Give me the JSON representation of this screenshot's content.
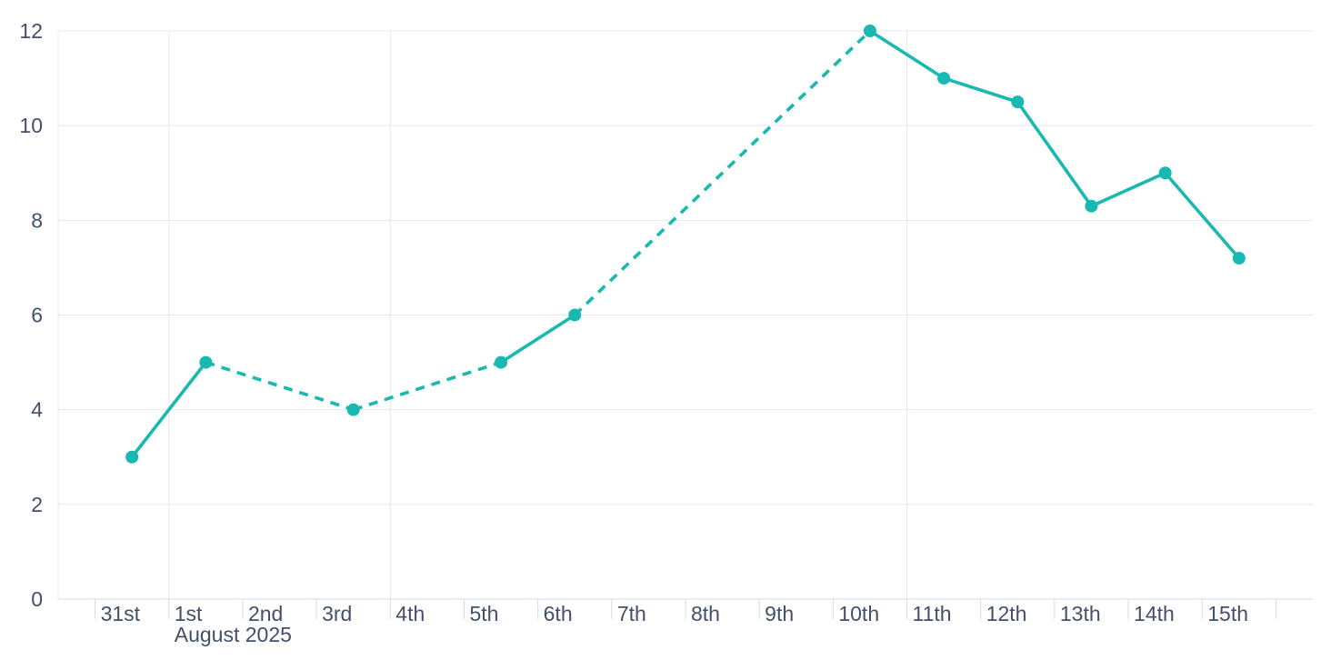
{
  "chart_data": {
    "type": "line",
    "title": "",
    "x_axis": {
      "tick_labels": [
        "31st",
        "1st",
        "2nd",
        "3rd",
        "4th",
        "5th",
        "6th",
        "7th",
        "8th",
        "9th",
        "10th",
        "11th",
        "12th",
        "13th",
        "14th",
        "15th"
      ],
      "month_label": "August 2025",
      "month_label_tick_index": 1,
      "vertical_gridline_tick_indices": [
        1,
        4,
        11
      ]
    },
    "y_axis": {
      "tick_values": [
        0,
        2,
        4,
        6,
        8,
        10,
        12
      ],
      "tick_labels": [
        "0",
        "2",
        "4",
        "6",
        "8",
        "10",
        "12"
      ],
      "ylim": [
        0,
        12
      ]
    },
    "series": [
      {
        "name": "daily-values",
        "color": "#19b9b1",
        "marker": "circle",
        "points": [
          {
            "day_label": "31st",
            "day_index": 0,
            "value": 3
          },
          {
            "day_label": "1st",
            "day_index": 1,
            "value": 5
          },
          {
            "day_label": "3rd",
            "day_index": 3,
            "value": 4
          },
          {
            "day_label": "5th",
            "day_index": 5,
            "value": 5
          },
          {
            "day_label": "6th",
            "day_index": 6,
            "value": 6
          },
          {
            "day_label": "10th",
            "day_index": 10,
            "value": 12
          },
          {
            "day_label": "11th",
            "day_index": 11,
            "value": 11
          },
          {
            "day_label": "12th",
            "day_index": 12,
            "value": 10.5
          },
          {
            "day_label": "13th",
            "day_index": 13,
            "value": 8.3
          },
          {
            "day_label": "14th",
            "day_index": 14,
            "value": 9
          },
          {
            "day_label": "15th",
            "day_index": 15,
            "value": 7.2
          }
        ],
        "segment_styles": [
          "solid",
          "dashed",
          "dashed",
          "solid",
          "dashed",
          "solid",
          "solid",
          "solid",
          "solid",
          "solid"
        ]
      }
    ],
    "grid": {
      "horizontal": true,
      "legend": false
    }
  },
  "colors": {
    "line": "#19b9b1",
    "grid_line": "#e4e8f2",
    "axis_line": "#d4dae8",
    "tick_text": "#42506a",
    "background": "#ffffff"
  }
}
